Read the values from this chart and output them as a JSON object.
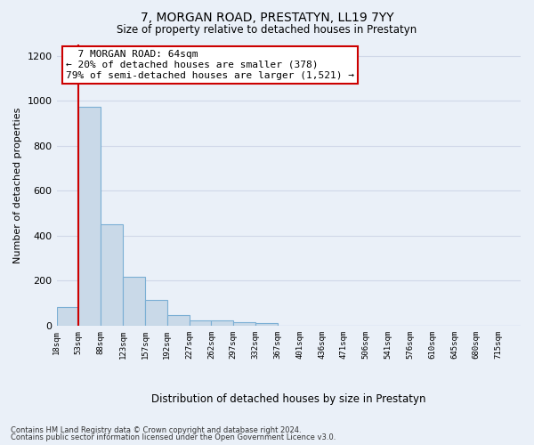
{
  "title": "7, MORGAN ROAD, PRESTATYN, LL19 7YY",
  "subtitle": "Size of property relative to detached houses in Prestatyn",
  "xlabel": "Distribution of detached houses by size in Prestatyn",
  "ylabel": "Number of detached properties",
  "footer_line1": "Contains HM Land Registry data © Crown copyright and database right 2024.",
  "footer_line2": "Contains public sector information licensed under the Open Government Licence v3.0.",
  "annotation_line1": "7 MORGAN ROAD: 64sqm",
  "annotation_line2": "← 20% of detached houses are smaller (378)",
  "annotation_line3": "79% of semi-detached houses are larger (1,521) →",
  "bar_labels": [
    "18sqm",
    "53sqm",
    "88sqm",
    "123sqm",
    "157sqm",
    "192sqm",
    "227sqm",
    "262sqm",
    "297sqm",
    "332sqm",
    "367sqm",
    "401sqm",
    "436sqm",
    "471sqm",
    "506sqm",
    "541sqm",
    "576sqm",
    "610sqm",
    "645sqm",
    "680sqm",
    "715sqm"
  ],
  "bar_values": [
    82,
    975,
    452,
    218,
    113,
    47,
    23,
    22,
    17,
    10,
    0,
    0,
    0,
    0,
    0,
    0,
    0,
    0,
    0,
    0,
    0
  ],
  "bar_color": "#c9d9e8",
  "bar_edgecolor": "#7bafd4",
  "red_line_x": 0.5,
  "ylim": [
    0,
    1250
  ],
  "yticks": [
    0,
    200,
    400,
    600,
    800,
    1000,
    1200
  ],
  "grid_color": "#d0d8e8",
  "bg_color": "#eaf0f8",
  "annotation_box_color": "#ffffff",
  "annotation_box_edgecolor": "#cc0000",
  "red_line_color": "#cc0000"
}
